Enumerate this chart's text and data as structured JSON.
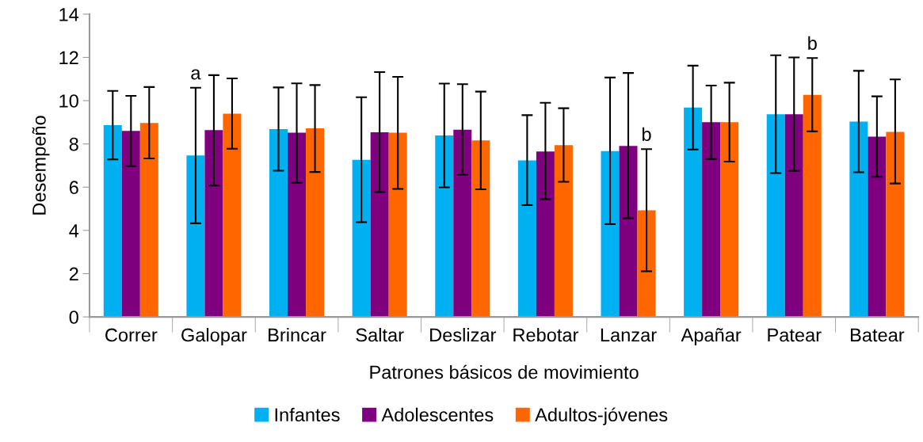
{
  "chart_data": {
    "type": "bar",
    "xlabel": "Patrones básicos de movimiento",
    "ylabel": "Desempeño",
    "categories": [
      "Correr",
      "Galopar",
      "Brincar",
      "Saltar",
      "Deslizar",
      "Rebotar",
      "Lanzar",
      "Apañar",
      "Patear",
      "Batear"
    ],
    "ylim": [
      0,
      14
    ],
    "yticks": [
      0,
      2,
      4,
      6,
      8,
      10,
      12,
      14
    ],
    "grid": false,
    "legend": "bottom",
    "series": [
      {
        "name": "Infantes",
        "color": "#00b0f0",
        "values": [
          8.87,
          7.47,
          8.68,
          7.26,
          8.39,
          7.24,
          7.67,
          9.68,
          9.37,
          9.03
        ],
        "errors": [
          [
            7.28,
            10.45
          ],
          [
            4.33,
            10.6
          ],
          [
            6.76,
            10.61
          ],
          [
            4.38,
            10.16
          ],
          [
            5.99,
            10.79
          ],
          [
            5.17,
            9.33
          ],
          [
            4.29,
            11.07
          ],
          [
            7.74,
            11.62
          ],
          [
            6.65,
            12.1
          ],
          [
            6.69,
            11.38
          ]
        ]
      },
      {
        "name": "Adolescentes",
        "color": "#7f007f",
        "values": [
          8.6,
          8.64,
          8.52,
          8.54,
          8.66,
          7.65,
          7.91,
          9.0,
          9.37,
          8.34
        ],
        "errors": [
          [
            6.97,
            10.22
          ],
          [
            6.08,
            11.18
          ],
          [
            6.2,
            10.8
          ],
          [
            5.77,
            11.32
          ],
          [
            6.58,
            10.76
          ],
          [
            5.44,
            9.9
          ],
          [
            4.56,
            11.28
          ],
          [
            7.3,
            10.7
          ],
          [
            6.75,
            12.0
          ],
          [
            6.48,
            10.2
          ]
        ]
      },
      {
        "name": "Adultos-jóvenes",
        "color": "#ff6600",
        "values": [
          8.97,
          9.4,
          8.72,
          8.52,
          8.16,
          7.94,
          4.93,
          9.0,
          10.27,
          8.56
        ],
        "errors": [
          [
            7.33,
            10.63
          ],
          [
            7.78,
            11.03
          ],
          [
            6.7,
            10.72
          ],
          [
            5.92,
            11.1
          ],
          [
            5.9,
            10.42
          ],
          [
            6.25,
            9.65
          ],
          [
            2.11,
            7.76
          ],
          [
            7.18,
            10.83
          ],
          [
            8.58,
            11.97
          ],
          [
            6.17,
            10.98
          ]
        ]
      }
    ],
    "annotations": [
      {
        "text": "a",
        "x": "Galopar",
        "y": 10.6
      },
      {
        "text": "b",
        "x": "Lanzar",
        "y": 7.76
      },
      {
        "text": "b",
        "x": "Patear",
        "y": 11.97
      }
    ]
  }
}
